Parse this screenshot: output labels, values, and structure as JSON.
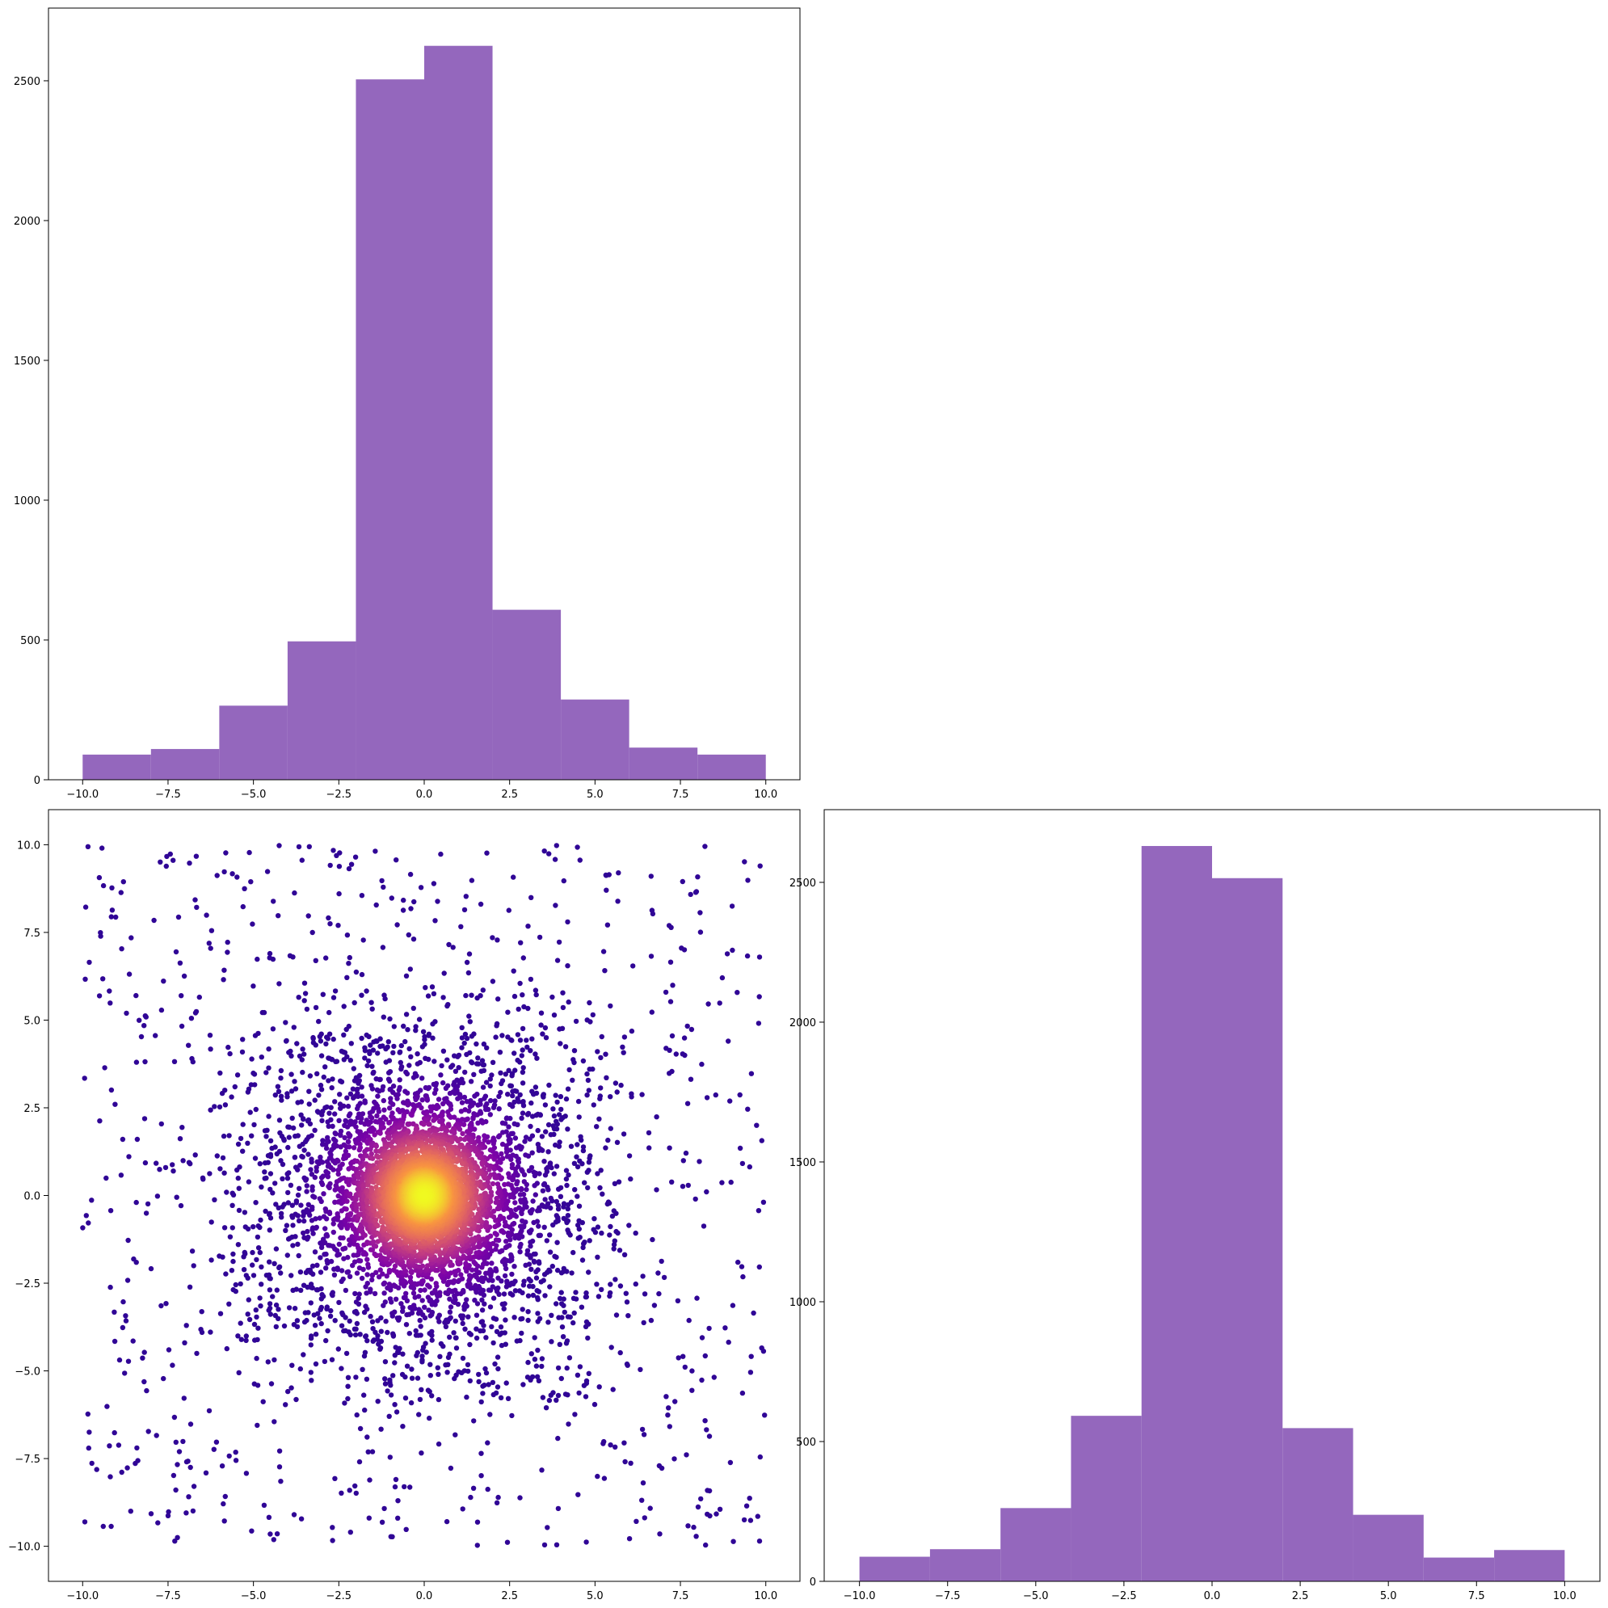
{
  "chart_data": [
    {
      "panel": "top-left",
      "type": "bar",
      "kind": "histogram",
      "title": "",
      "xlabel": "",
      "ylabel": "",
      "color": "#9467bd",
      "bin_edges": [
        -10.0,
        -8.0,
        -6.0,
        -4.0,
        -2.0,
        0.0,
        2.0,
        4.0,
        6.0,
        8.0,
        10.0
      ],
      "values": [
        90,
        110,
        265,
        495,
        2505,
        2625,
        608,
        287,
        115,
        90
      ],
      "xlim": [
        -11.0,
        11.0
      ],
      "ylim": [
        0,
        2760
      ],
      "xticks": [
        -10.0,
        -7.5,
        -5.0,
        -2.5,
        0.0,
        2.5,
        5.0,
        7.5,
        10.0
      ],
      "xtick_labels": [
        "−10.0",
        "−7.5",
        "−5.0",
        "−2.5",
        "0.0",
        "2.5",
        "5.0",
        "7.5",
        "10.0"
      ],
      "yticks": [
        0,
        500,
        1000,
        1500,
        2000,
        2500
      ],
      "ytick_labels": [
        "0",
        "500",
        "1000",
        "1500",
        "2000",
        "2500"
      ]
    },
    {
      "panel": "bottom-left",
      "type": "scatter",
      "title": "",
      "xlabel": "",
      "ylabel": "",
      "colormap": "plasma (density)",
      "color_low": "#2d0a94",
      "color_high": "#f0f921",
      "n_points": 10000,
      "distribution": "dense core near (0, 0), broad cloud within about ±6, sparse uniform points over ±10",
      "xlim": [
        -11.0,
        11.0
      ],
      "ylim": [
        -11.0,
        11.0
      ],
      "xticks": [
        -10.0,
        -7.5,
        -5.0,
        -2.5,
        0.0,
        2.5,
        5.0,
        7.5,
        10.0
      ],
      "xtick_labels": [
        "−10.0",
        "−7.5",
        "−5.0",
        "−2.5",
        "0.0",
        "2.5",
        "5.0",
        "7.5",
        "10.0"
      ],
      "yticks": [
        10.0,
        7.5,
        5.0,
        2.5,
        0.0,
        -2.5,
        -5.0,
        -7.5,
        -10.0
      ],
      "ytick_labels": [
        "10.0",
        "7.5",
        "5.0",
        "2.5",
        "0.0",
        "−2.5",
        "−5.0",
        "−7.5",
        "−10.0"
      ]
    },
    {
      "panel": "bottom-right",
      "type": "bar",
      "kind": "histogram",
      "title": "",
      "xlabel": "",
      "ylabel": "",
      "color": "#9467bd",
      "bin_edges": [
        -10.0,
        -8.0,
        -6.0,
        -4.0,
        -2.0,
        0.0,
        2.0,
        4.0,
        6.0,
        8.0,
        10.0
      ],
      "values": [
        88,
        115,
        262,
        592,
        2630,
        2515,
        548,
        238,
        85,
        112
      ],
      "xlim": [
        -11.0,
        11.0
      ],
      "ylim": [
        0,
        2760
      ],
      "xticks": [
        -10.0,
        -7.5,
        -5.0,
        -2.5,
        0.0,
        2.5,
        5.0,
        7.5,
        10.0
      ],
      "xtick_labels": [
        "−10.0",
        "−7.5",
        "−5.0",
        "−2.5",
        "0.0",
        "2.5",
        "5.0",
        "7.5",
        "10.0"
      ],
      "yticks": [
        0,
        500,
        1000,
        1500,
        2000,
        2500
      ],
      "ytick_labels": [
        "0",
        "500",
        "1000",
        "1500",
        "2000",
        "2500"
      ]
    }
  ]
}
